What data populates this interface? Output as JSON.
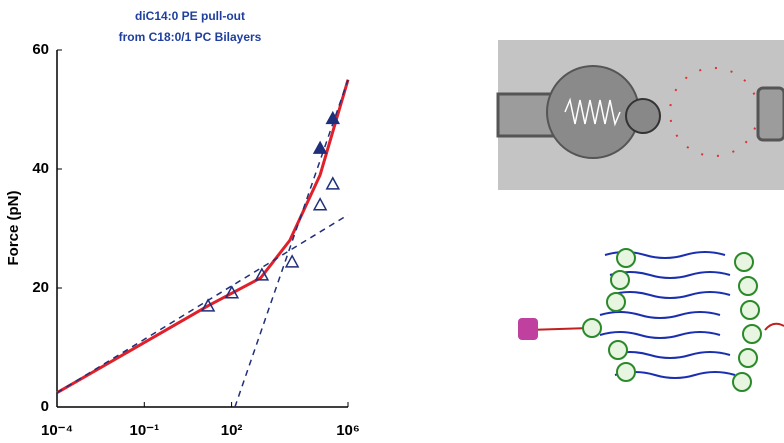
{
  "chart_data": {
    "type": "line",
    "title": [
      "diC14:0 PE pull-out",
      "from C18:0/1 PC Bilayers"
    ],
    "y_label": "Force (pN)",
    "xscale": "log",
    "xlim": [
      0.0001,
      1000000
    ],
    "xticks": [
      {
        "value": 0.0001,
        "label": "10⁻⁴"
      },
      {
        "value": 0.1,
        "label": "10⁻¹"
      },
      {
        "value": 100,
        "label": "10²"
      },
      {
        "value": 1000000,
        "label": "10⁶"
      }
    ],
    "ylim": [
      0,
      60
    ],
    "yticks": [
      0,
      20,
      40,
      60
    ],
    "series": [
      {
        "style": "solid",
        "color": "#e0202a",
        "x": [
          0.0001,
          15.5,
          1000,
          10000,
          110000,
          1000000
        ],
        "values": [
          2.4,
          17,
          21.7,
          28,
          39,
          55
        ]
      },
      {
        "style": "dashed",
        "color": "#1f2f7a",
        "x": [
          0.0001,
          1000000
        ],
        "values": [
          2.4,
          32.3
        ]
      },
      {
        "style": "dashed",
        "color": "#1f2f7a",
        "x": [
          130,
          1000000
        ],
        "values": [
          0,
          55
        ]
      },
      {
        "style": "open-triangle",
        "color": "#1f2f7a",
        "x": [
          15.5,
          102,
          1100,
          12000,
          110000,
          300000
        ],
        "values": [
          17,
          19.2,
          22.2,
          24.4,
          34,
          37.5
        ]
      },
      {
        "style": "filled-triangle",
        "color": "#1f2f7a",
        "x": [
          110000,
          300000
        ],
        "values": [
          43.5,
          48.5
        ]
      }
    ]
  }
}
